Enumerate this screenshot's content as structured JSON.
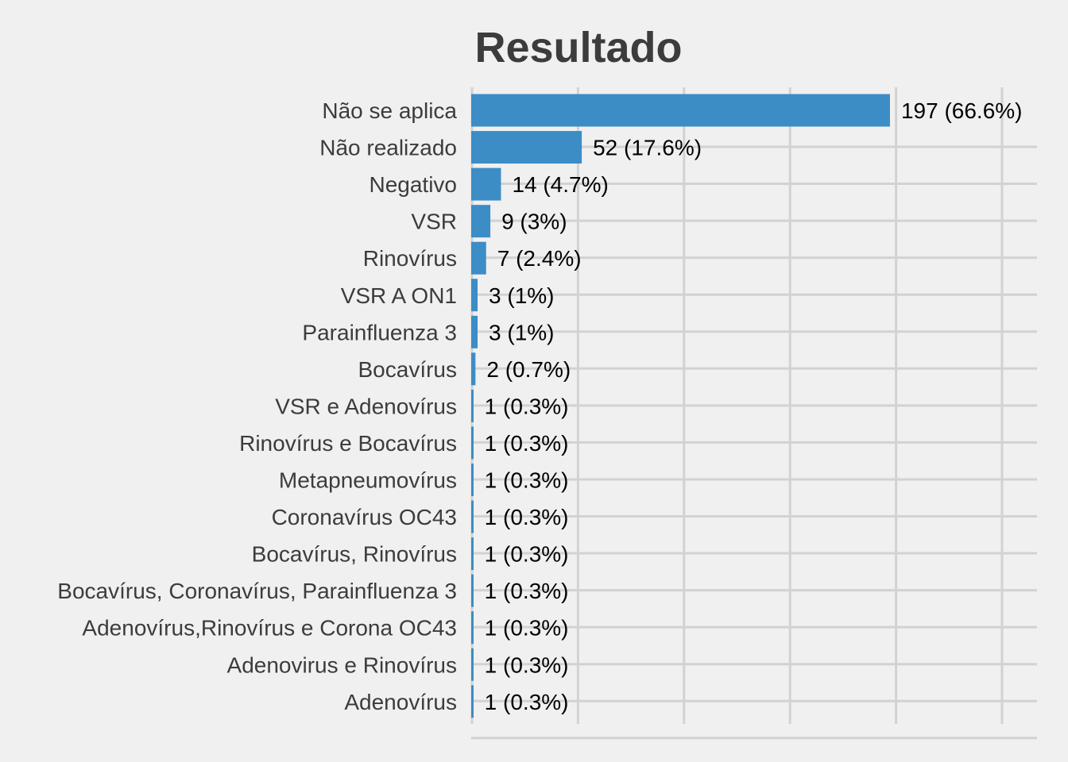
{
  "chart_data": {
    "type": "bar",
    "orientation": "horizontal",
    "title": "Resultado",
    "xlabel": "",
    "ylabel": "",
    "grid": true,
    "legend": "none",
    "xlim": [
      0,
      200
    ],
    "bar_color": "#3c8dc6",
    "background": "#f0f0f0",
    "categories": [
      "Não se aplica",
      "Não realizado",
      "Negativo",
      "VSR",
      "Rinovírus",
      "VSR A ON1",
      "Parainfluenza 3",
      "Bocavírus",
      "VSR e Adenovírus",
      "Rinovírus e Bocavírus",
      "Metapneumovírus",
      "Coronavírus OC43",
      "Bocavírus, Rinovírus",
      "Bocavírus, Coronavírus, Parainfluenza 3",
      "Adenovírus,Rinovírus e Corona OC43",
      "Adenovirus e Rinovírus",
      "Adenovírus"
    ],
    "values": [
      197,
      52,
      14,
      9,
      7,
      3,
      3,
      2,
      1,
      1,
      1,
      1,
      1,
      1,
      1,
      1,
      1
    ],
    "data_labels": [
      "197 (66.6%)",
      "52 (17.6%)",
      "14 (4.7%)",
      "9 (3%)",
      "7 (2.4%)",
      "3 (1%)",
      "3 (1%)",
      "2 (0.7%)",
      "1 (0.3%)",
      "1 (0.3%)",
      "1 (0.3%)",
      "1 (0.3%)",
      "1 (0.3%)",
      "1 (0.3%)",
      "1 (0.3%)",
      "1 (0.3%)",
      "1 (0.3%)"
    ]
  }
}
